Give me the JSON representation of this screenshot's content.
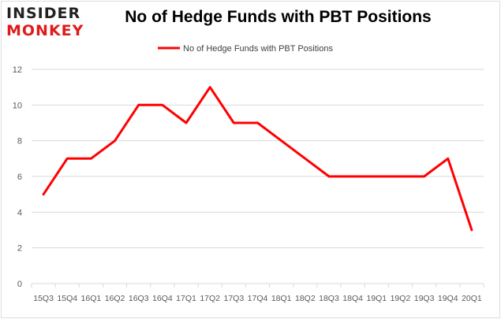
{
  "brand": {
    "line1": "INSIDER",
    "line2": "MONKEY"
  },
  "chart_data": {
    "type": "line",
    "title": "No of Hedge Funds with PBT Positions",
    "xlabel": "",
    "ylabel": "",
    "categories": [
      "15Q3",
      "15Q4",
      "16Q1",
      "16Q2",
      "16Q3",
      "16Q4",
      "17Q1",
      "17Q2",
      "17Q3",
      "17Q4",
      "18Q1",
      "18Q2",
      "18Q3",
      "18Q4",
      "19Q1",
      "19Q2",
      "19Q3",
      "19Q4",
      "20Q1"
    ],
    "series": [
      {
        "name": "No of Hedge Funds with PBT Positions",
        "values": [
          5,
          7,
          7,
          8,
          10,
          10,
          9,
          11,
          9,
          9,
          8,
          7,
          6,
          6,
          6,
          6,
          6,
          7,
          3
        ],
        "color": "#ff0000"
      }
    ],
    "ylim": [
      0,
      12
    ],
    "yticks": [
      0,
      2,
      4,
      6,
      8,
      10,
      12
    ],
    "grid": true,
    "legend_position": "top-center",
    "colors": {
      "line": "#ff0000",
      "grid": "#d9d9d9",
      "axis_text": "#595959"
    }
  }
}
